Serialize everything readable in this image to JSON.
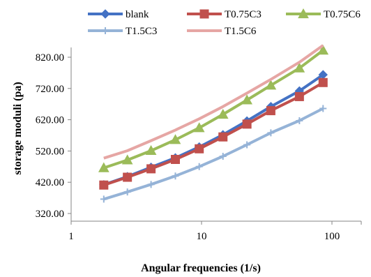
{
  "chart_data": {
    "type": "line",
    "xscale": "log",
    "xlabel": "Angular frequencies (1/s)",
    "ylabel": "storage moduli (pa)",
    "xlim": [
      1,
      100
    ],
    "ylim": [
      320,
      880
    ],
    "xticks": [
      1,
      10,
      100
    ],
    "xtick_labels": [
      "1",
      "10",
      "100"
    ],
    "yticks": [
      320,
      420,
      520,
      620,
      720,
      820
    ],
    "ytick_labels": [
      "320.00",
      "420.00",
      "520.00",
      "620.00",
      "720.00",
      "820.00"
    ],
    "grid": false,
    "legend_position": "top",
    "x": [
      1.78,
      2.7,
      4.1,
      6.3,
      9.6,
      14.6,
      22.3,
      34,
      56.3,
      85.5
    ],
    "series": [
      {
        "name": "blank",
        "color": "#4472C4",
        "marker": "diamond",
        "values": [
          412,
          438,
          468,
          498,
          533,
          572,
          616,
          662,
          712,
          764
        ]
      },
      {
        "name": "T0.75C3",
        "color": "#C0504D",
        "marker": "square",
        "values": [
          411,
          436,
          463,
          493,
          527,
          565,
          606,
          649,
          694,
          739
        ]
      },
      {
        "name": "T0.75C6",
        "color": "#9BBB59",
        "marker": "triangle",
        "values": [
          466,
          491,
          521,
          556,
          594,
          637,
          683,
          730,
          785,
          842
        ]
      },
      {
        "name": "T1.5C3",
        "color": "#95B3D7",
        "marker": "plus",
        "values": [
          366,
          389,
          413,
          440,
          470,
          503,
          540,
          578,
          617,
          656
        ]
      },
      {
        "name": "T1.5C6",
        "color": "#E6A6A4",
        "marker": "none",
        "values": [
          497,
          521,
          553,
          587,
          623,
          662,
          705,
          749,
          804,
          858
        ]
      }
    ]
  }
}
